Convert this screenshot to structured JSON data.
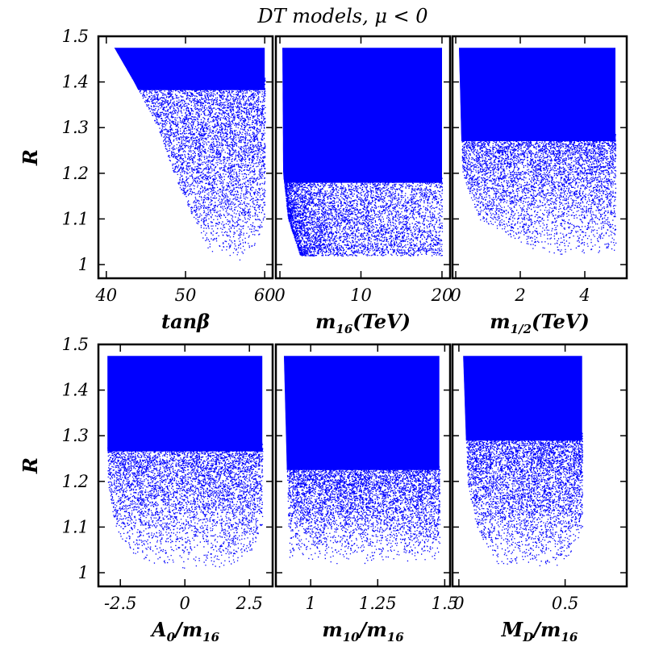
{
  "title": "DT models, μ < 0",
  "colors": {
    "points": "#0000ff",
    "frame": "#000000"
  },
  "chart_data": [
    {
      "type": "scatter",
      "row": 0,
      "col": 0,
      "xlabel": {
        "main": "tan",
        "greek": "β"
      },
      "ylabel": "R",
      "xlim": [
        39,
        61
      ],
      "ylim": [
        0.97,
        1.5
      ],
      "xticks": [
        40,
        50,
        60
      ],
      "xtick_labels": [
        "40",
        "50",
        "60"
      ],
      "yticks": [
        1,
        1.1,
        1.2,
        1.3,
        1.4,
        1.5
      ],
      "ytick_labels": [
        "1",
        "1.1",
        "1.2",
        "1.3",
        "1.4",
        "1.5"
      ],
      "region": {
        "ymin": 1.01,
        "ymax": 1.475,
        "boundary": [
          [
            1.01,
            53.5,
            58.0
          ],
          [
            1.1,
            51.0,
            60.0
          ],
          [
            1.2,
            48.5,
            60.0
          ],
          [
            1.3,
            46.5,
            60.0
          ],
          [
            1.4,
            43.5,
            60.0
          ],
          [
            1.475,
            41.0,
            60.0
          ]
        ],
        "dense": 0.8,
        "density": "upper"
      }
    },
    {
      "type": "scatter",
      "row": 0,
      "col": 1,
      "xlabel": {
        "main": "m",
        "sub": "16",
        "unit": "(TeV)"
      },
      "xlim": [
        -0.5,
        21
      ],
      "ylim": [
        0.97,
        1.5
      ],
      "xticks": [
        0,
        10,
        20
      ],
      "xtick_labels": [
        "0",
        "10",
        "20"
      ],
      "region": {
        "ymin": 1.02,
        "ymax": 1.475,
        "boundary": [
          [
            1.02,
            2.5,
            20.0
          ],
          [
            1.1,
            1.0,
            20.0
          ],
          [
            1.2,
            0.4,
            20.0
          ],
          [
            1.475,
            0.3,
            20.0
          ]
        ],
        "dense": 0.35,
        "density": "left"
      }
    },
    {
      "type": "scatter",
      "row": 0,
      "col": 2,
      "xlabel": {
        "main": "m",
        "sub": "1/2",
        "unit": "(TeV)"
      },
      "xlim": [
        -0.1,
        5.3
      ],
      "ylim": [
        0.97,
        1.5
      ],
      "xticks": [
        0,
        2,
        4
      ],
      "xtick_labels": [
        "0",
        "2",
        "4"
      ],
      "region": {
        "ymin": 1.02,
        "ymax": 1.475,
        "boundary": [
          [
            1.02,
            2.8,
            4.95
          ],
          [
            1.1,
            0.7,
            4.95
          ],
          [
            1.2,
            0.2,
            4.95
          ],
          [
            1.475,
            0.1,
            4.95
          ]
        ],
        "dense": 0.55,
        "density": "upper"
      }
    },
    {
      "type": "scatter",
      "row": 1,
      "col": 0,
      "xlabel": {
        "main": "A",
        "sub": "0",
        "rest": "/m",
        "sub2": "16"
      },
      "ylabel": "R",
      "xlim": [
        -3.35,
        3.4
      ],
      "ylim": [
        0.97,
        1.5
      ],
      "xticks": [
        -2.5,
        0,
        2.5
      ],
      "xtick_labels": [
        "-2.5",
        "0",
        "2.5"
      ],
      "region": {
        "ymin": 1.01,
        "ymax": 1.475,
        "boundary": [
          [
            1.01,
            -1.0,
            1.6
          ],
          [
            1.05,
            -2.2,
            2.6
          ],
          [
            1.1,
            -2.7,
            3.0
          ],
          [
            1.2,
            -3.0,
            3.0
          ],
          [
            1.475,
            -3.0,
            3.0
          ]
        ],
        "dense": 0.55,
        "density": "upper"
      }
    },
    {
      "type": "scatter",
      "row": 1,
      "col": 1,
      "xlabel": {
        "main": "m",
        "sub": "10",
        "rest": "/m",
        "sub2": "16"
      },
      "xlim": [
        0.87,
        1.52
      ],
      "ylim": [
        0.97,
        1.5
      ],
      "xticks": [
        1,
        1.25,
        1.5
      ],
      "xtick_labels": [
        "1",
        "1.25",
        "1.5"
      ],
      "region": {
        "ymin": 1.02,
        "ymax": 1.475,
        "boundary": [
          [
            1.02,
            0.92,
            1.48
          ],
          [
            1.475,
            0.9,
            1.48
          ]
        ],
        "dense": 0.45,
        "density": "upper"
      }
    },
    {
      "type": "scatter",
      "row": 1,
      "col": 2,
      "xlabel": {
        "main": "M",
        "sub": "D",
        "rest": "/m",
        "sub2": "16"
      },
      "xlim": [
        -0.03,
        0.79
      ],
      "ylim": [
        0.97,
        1.5
      ],
      "xticks": [
        0,
        0.5
      ],
      "xtick_labels": [
        "0",
        "0.5"
      ],
      "region": {
        "ymin": 1.01,
        "ymax": 1.475,
        "boundary": [
          [
            1.01,
            0.2,
            0.45
          ],
          [
            1.05,
            0.14,
            0.54
          ],
          [
            1.1,
            0.08,
            0.58
          ],
          [
            1.2,
            0.04,
            0.58
          ],
          [
            1.475,
            0.02,
            0.58
          ]
        ],
        "dense": 0.6,
        "density": "upper"
      }
    }
  ]
}
